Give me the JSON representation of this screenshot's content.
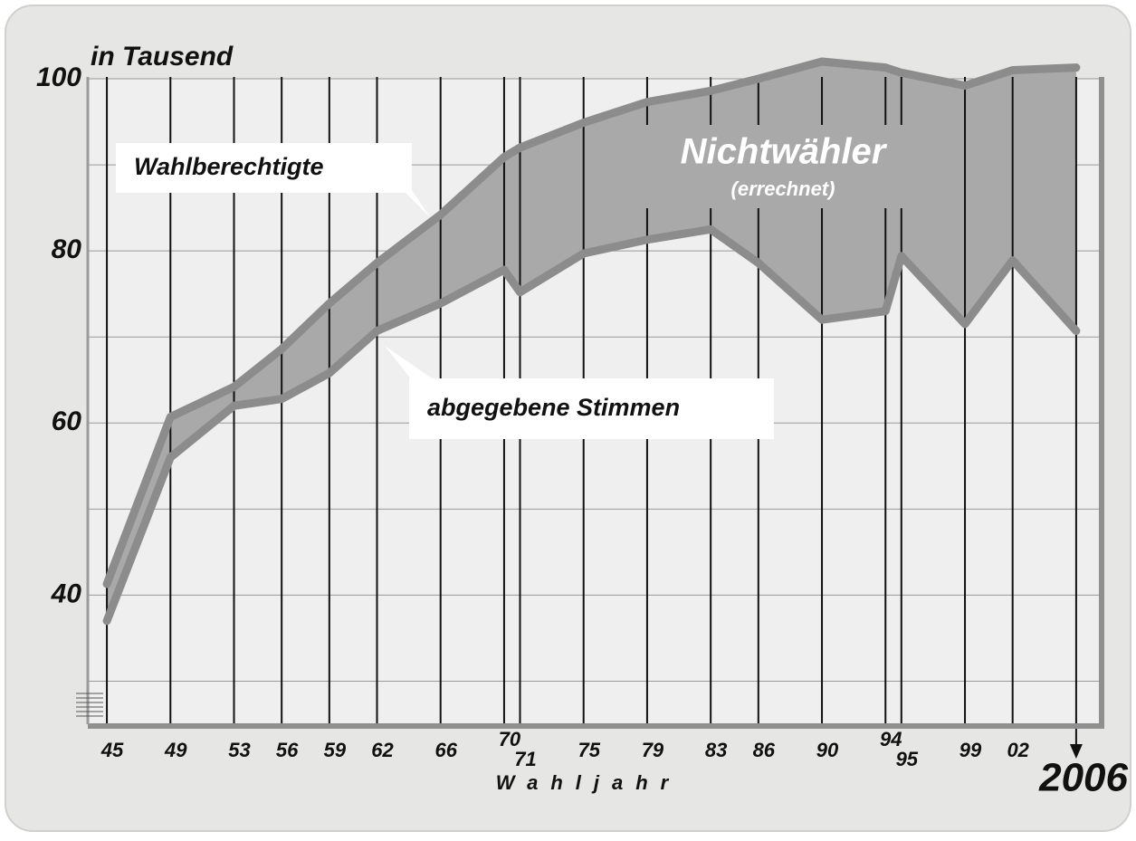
{
  "chart_data": {
    "type": "line",
    "ylabel": "in Tausend",
    "xlabel": "Wahljahr",
    "area_label": "Nichtwähler",
    "area_sublabel": "(errechnet)",
    "x": [
      1945,
      1949,
      1953,
      1956,
      1959,
      1962,
      1966,
      1970,
      1971,
      1975,
      1979,
      1983,
      1986,
      1990,
      1994,
      1995,
      1999,
      2002,
      2006
    ],
    "series": [
      {
        "name": "Wahlberechtigte",
        "color": "#8c8c8c",
        "values": [
          41.3,
          60.7,
          64.2,
          68.6,
          73.9,
          78.6,
          84.2,
          90.9,
          92,
          94.9,
          97.3,
          98.6,
          100,
          102,
          101.3,
          100.7,
          99.2,
          101,
          101.3
        ]
      },
      {
        "name": "abgegebene Stimmen",
        "color": "#8c8c8c",
        "values": [
          37,
          56,
          62,
          62.8,
          65.8,
          70.7,
          73.9,
          77.8,
          75.2,
          79.7,
          81.3,
          82.5,
          78.6,
          72,
          73,
          79.4,
          71.5,
          78.9,
          70.7
        ]
      }
    ],
    "area_color": "#a9a9a9",
    "xlim": [
      1943.8,
      2007.6
    ],
    "ylim": [
      25,
      100
    ],
    "xticks": [
      {
        "value": 1945,
        "label": "45"
      },
      {
        "value": 1949,
        "label": "49"
      },
      {
        "value": 1953,
        "label": "53"
      },
      {
        "value": 1956,
        "label": "56"
      },
      {
        "value": 1959,
        "label": "59"
      },
      {
        "value": 1962,
        "label": "62"
      },
      {
        "value": 1966,
        "label": "66"
      },
      {
        "value": 1970,
        "label": "70"
      },
      {
        "value": 1971,
        "label": "71"
      },
      {
        "value": 1975,
        "label": "75"
      },
      {
        "value": 1979,
        "label": "79"
      },
      {
        "value": 1983,
        "label": "83"
      },
      {
        "value": 1986,
        "label": "86"
      },
      {
        "value": 1990,
        "label": "90"
      },
      {
        "value": 1994,
        "label": "94"
      },
      {
        "value": 1995,
        "label": "95"
      },
      {
        "value": 1999,
        "label": "99"
      },
      {
        "value": 2002,
        "label": "02"
      },
      2006
    ],
    "yticks": [
      40,
      60,
      80,
      100
    ],
    "grid_yticks": [
      30,
      40,
      50,
      60,
      70,
      80,
      90,
      100
    ],
    "grid": true
  }
}
